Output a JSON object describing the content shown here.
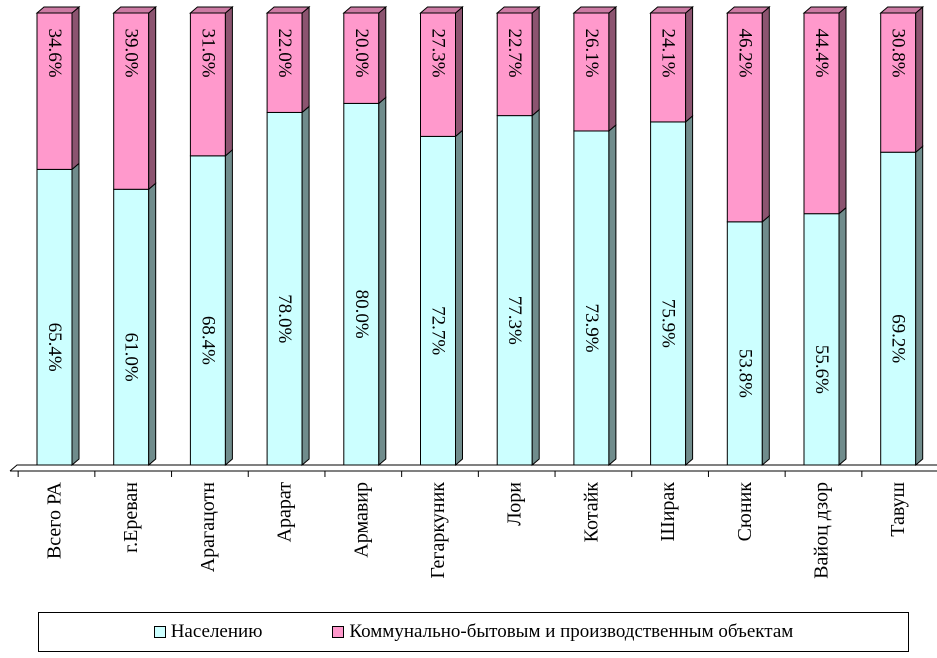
{
  "chart_data": {
    "type": "bar",
    "stacked": true,
    "percent_stacked": true,
    "three_d": true,
    "categories": [
      "Всего РА",
      "г.Ереван",
      "Арагацотн",
      "Арарат",
      "Армавир",
      "Гегаркуник",
      "Лори",
      "Котайк",
      "Ширак",
      "Сюник",
      "Вайоц дзор",
      "Тавуш"
    ],
    "series": [
      {
        "name": "Населению",
        "color": "#ccffff",
        "values": [
          65.4,
          61.0,
          68.4,
          78.0,
          80.0,
          72.7,
          77.3,
          73.9,
          75.9,
          53.8,
          55.6,
          69.2
        ],
        "labels": [
          "65.4%",
          "61.0%",
          "68.4%",
          "78.0%",
          "80.0%",
          "72.7%",
          "77.3%",
          "73.9%",
          "75.9%",
          "53.8%",
          "55.6%",
          "69.2%"
        ]
      },
      {
        "name": "Коммунально-бытовым и производственным объектам",
        "color": "#ff99cc",
        "values": [
          34.6,
          39.0,
          31.6,
          22.0,
          20.0,
          27.3,
          22.7,
          26.1,
          24.1,
          46.2,
          44.4,
          30.8
        ],
        "labels": [
          "34.6%",
          "39.0%",
          "31.6%",
          "22.0%",
          "20.0%",
          "27.3%",
          "22.7%",
          "26.1%",
          "24.1%",
          "46.2%",
          "44.4%",
          "30.8%"
        ]
      }
    ],
    "ylim": [
      0,
      100
    ],
    "grid": false,
    "legend_position": "bottom"
  }
}
